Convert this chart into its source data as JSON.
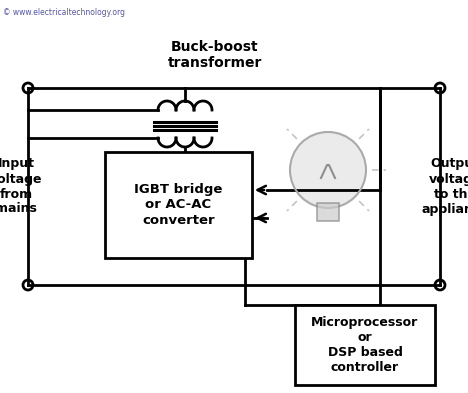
{
  "bg_color": "#ffffff",
  "line_color": "#000000",
  "text_color": "#000000",
  "watermark_color": "#5555aa",
  "watermark_text": "© www.electricaltechnology.org",
  "label_transformer": "Buck-boost\ntransformer",
  "label_input": "Input\nvoltage\nfrom\nmains",
  "label_output": "Output\nvoltage\nto the\nappliance",
  "label_igbt": "IGBT bridge\nor AC-AC\nconverter",
  "label_mcu": "Microprocessor\nor\nDSP based\ncontroller",
  "fig_width": 4.68,
  "fig_height": 3.93,
  "dpi": 100
}
